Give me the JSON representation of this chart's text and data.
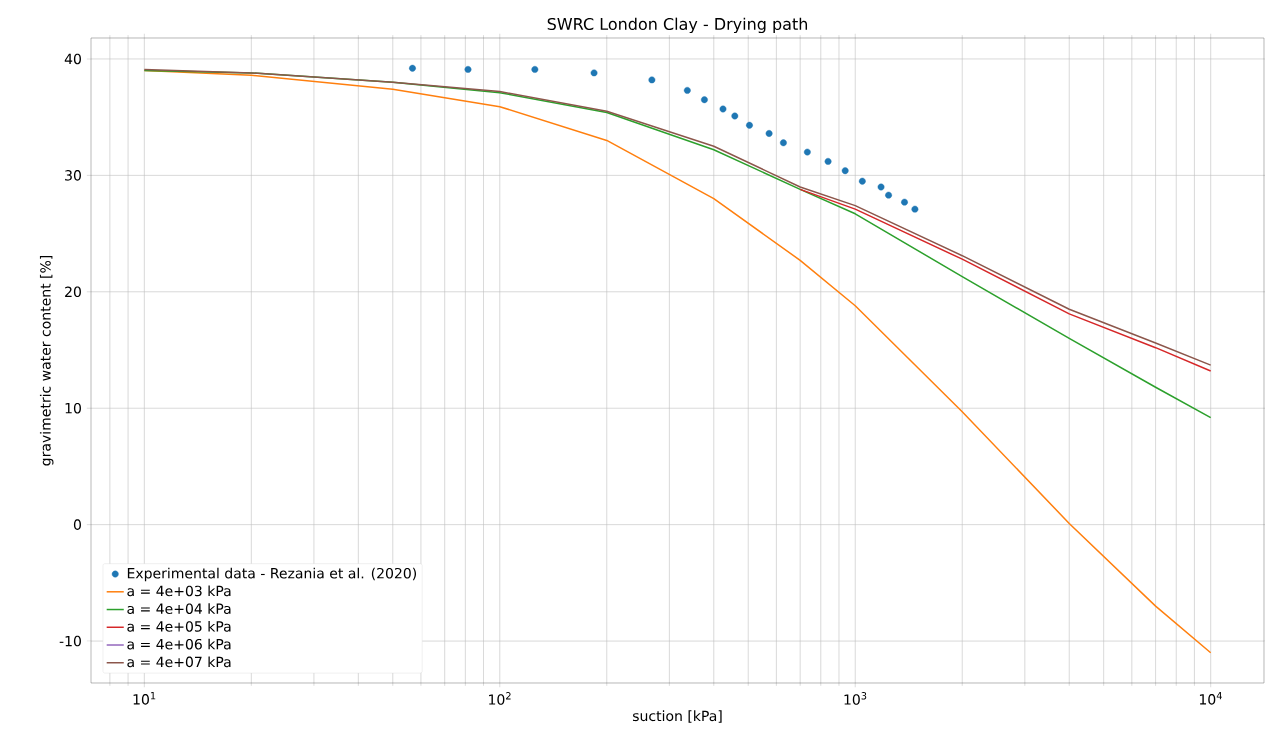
{
  "chart_data": {
    "type": "line",
    "title": "SWRC London Clay - Drying path",
    "xlabel": "suction [kPa]",
    "ylabel": "gravimetric water content [%]",
    "log": "x",
    "grid": true,
    "legend": "bottom left",
    "xlim": [
      7.08,
      14125
    ],
    "ylim": [
      -13.6,
      41.8
    ],
    "xticks": [
      {
        "value": 10,
        "label": "10$^{1}$"
      },
      {
        "value": 100,
        "label": "10$^{2}$"
      },
      {
        "value": 1000,
        "label": "10$^{3}$"
      },
      {
        "value": 10000,
        "label": "10$^{4}$"
      }
    ],
    "yticks": [
      -10,
      0,
      10,
      20,
      30,
      40
    ],
    "series": [
      {
        "name": "Experimental data - Rezania et al. (2020)",
        "type": "scatter",
        "color": "#1f77b4",
        "x": [
          56.8,
          81.4,
          125.5,
          184.2,
          267.9,
          337,
          376.5,
          424.6,
          458.4,
          504,
          572.4,
          628,
          733.3,
          838.7,
          937,
          1047,
          1182,
          1241,
          1376,
          1472
        ],
        "values": [
          39.2,
          39.1,
          39.1,
          38.8,
          38.2,
          37.3,
          36.5,
          35.7,
          35.1,
          34.3,
          33.6,
          32.8,
          32.0,
          31.2,
          30.4,
          29.5,
          29.0,
          28.3,
          27.7,
          27.1
        ]
      },
      {
        "name": "a = 4e+03 kPa",
        "color": "#ff7f0e",
        "x": [
          10,
          20,
          50,
          100,
          200,
          400,
          700,
          1000,
          2000,
          4000,
          7000,
          10000
        ],
        "values": [
          39.0,
          38.6,
          37.4,
          35.9,
          33.0,
          28.0,
          22.7,
          18.8,
          9.7,
          0.1,
          -7.0,
          -11.0
        ]
      },
      {
        "name": "a = 4e+04 kPa",
        "color": "#2ca02c",
        "x": [
          10,
          20,
          50,
          100,
          200,
          400,
          700,
          1000,
          2000,
          4000,
          7000,
          10000
        ],
        "values": [
          39.0,
          38.8,
          38.0,
          37.1,
          35.4,
          32.2,
          28.8,
          26.7,
          21.3,
          16.0,
          11.8,
          9.2
        ]
      },
      {
        "name": "a = 4e+05 kPa",
        "color": "#d62728",
        "x": [
          700,
          1000,
          2000,
          4000,
          7000,
          10000
        ],
        "values": [
          28.8,
          27.1,
          22.8,
          18.1,
          15.2,
          13.2
        ]
      },
      {
        "name": "a = 4e+06 kPa",
        "color": "#9467bd"
      },
      {
        "name": "a = 4e+07 kPa",
        "color": "#8c564b",
        "x": [
          10,
          20,
          50,
          100,
          200,
          400,
          700,
          1000,
          2000,
          4000,
          7000,
          10000
        ],
        "values": [
          39.1,
          38.8,
          38.0,
          37.2,
          35.5,
          32.5,
          29.0,
          27.4,
          23.1,
          18.5,
          15.6,
          13.7
        ]
      }
    ]
  }
}
